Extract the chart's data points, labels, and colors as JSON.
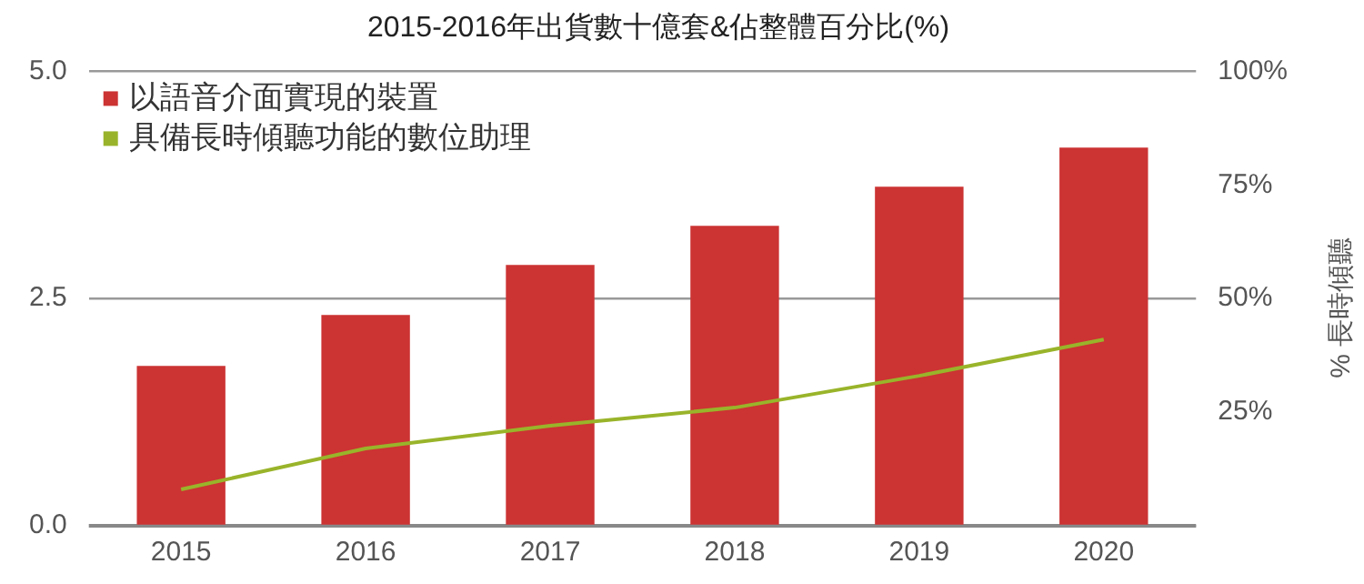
{
  "chart_data": {
    "type": "bar",
    "title": "2015-2016年出貨數十億套&佔整體百分比(%)",
    "y2label": "% 長時傾聽",
    "categories": [
      "2015",
      "2016",
      "2017",
      "2018",
      "2019",
      "2020"
    ],
    "series": [
      {
        "name": "以語音介面實現的裝置",
        "color": "#cc3333",
        "values": [
          1.76,
          2.32,
          2.87,
          3.3,
          3.73,
          4.16
        ]
      },
      {
        "name": "具備長時傾聽功能的數位助理",
        "type": "line",
        "axis": "y2",
        "color": "#99b42a",
        "values": [
          8,
          17,
          22,
          26,
          33,
          41
        ]
      }
    ],
    "ylim": [
      0,
      5
    ],
    "yticks": [
      {
        "value": 0,
        "label": "0.0"
      },
      {
        "value": 2.5,
        "label": "2.5"
      },
      {
        "value": 5,
        "label": "5.0"
      }
    ],
    "y2lim": [
      0,
      100
    ],
    "y2ticks": [
      {
        "value": 25,
        "label": "25%"
      },
      {
        "value": 50,
        "label": "50%"
      },
      {
        "value": 75,
        "label": "75%"
      },
      {
        "value": 100,
        "label": "100%"
      }
    ],
    "grid": "y",
    "legend": "top left",
    "marker": "none",
    "line_style": "solid"
  }
}
